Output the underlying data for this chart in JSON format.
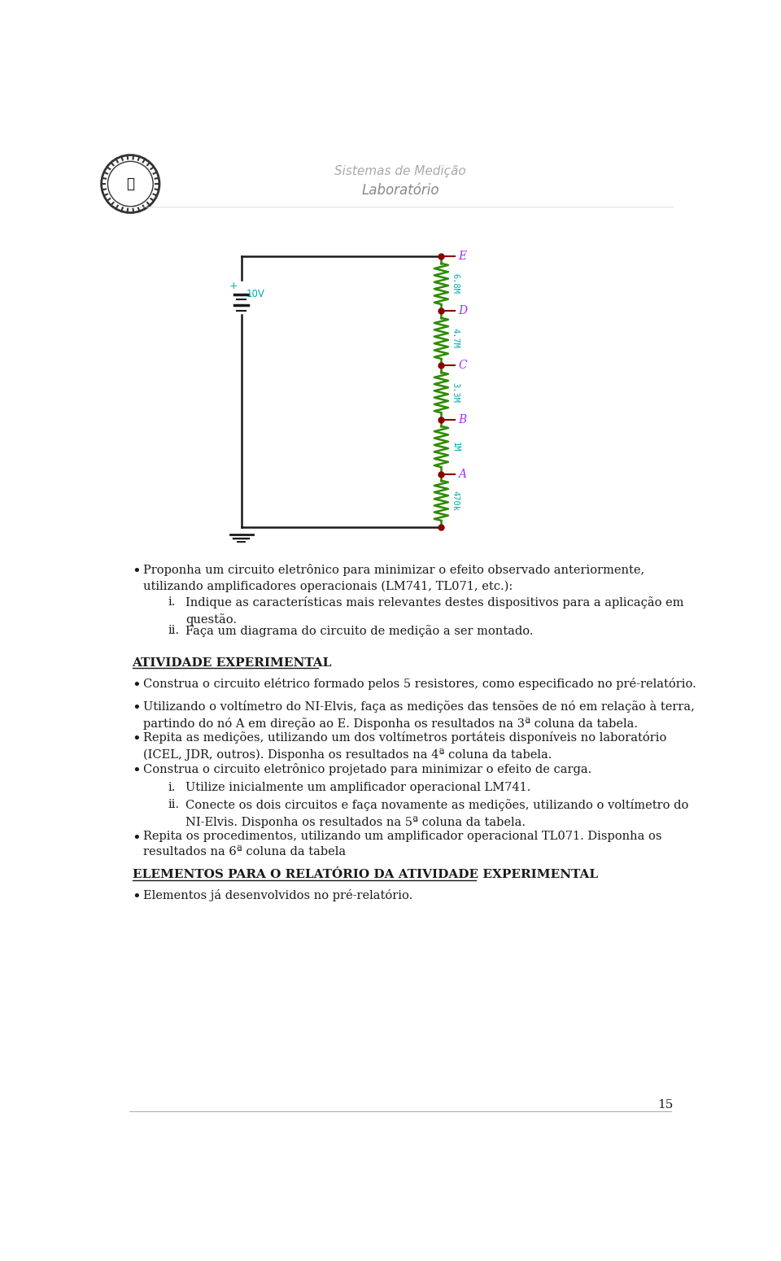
{
  "title1": "Sistemas de Medição",
  "title2": "Laboratório",
  "background_color": "#ffffff",
  "circuit_color": "#1a1a1a",
  "resistor_color": "#2e8b00",
  "node_color": "#8b0000",
  "label_color": "#9b30ff",
  "value_color": "#00aaaa",
  "battery_label": "10V",
  "resistors": [
    {
      "label": "6.8M",
      "node": "E"
    },
    {
      "label": "4.7M",
      "node": "D"
    },
    {
      "label": "3.3M",
      "node": "C"
    },
    {
      "label": "1M",
      "node": "B"
    },
    {
      "label": "470k",
      "node": "A"
    }
  ],
  "bullet1": "Proponha um circuito eletrônico para minimizar o efeito observado anteriormente,\nutilizando amplificadores operacionais (LM741, TL071, etc.):",
  "sub_i": "Indique as características mais relevantes destes dispositivos para a aplicação em\nquestão.",
  "sub_ii": "Faça um diagrama do circuito de medição a ser montado.",
  "section_title": "ATIVIDADE EXPERIMENTAL",
  "bullet2": "Construa o circuito elétrico formado pelos 5 resistores, como especificado no pré-relatório.",
  "bullet3": "Utilizando o voltímetro do NI-Elvis, faça as medições das tensões de nó em relação à terra,\npartindo do nó A em direção ao E. Disponha os resultados na 3ª coluna da tabela.",
  "bullet4": "Repita as medições, utilizando um dos voltímetros portáteis disponíveis no laboratório\n(ICEL, JDR, outros). Disponha os resultados na 4ª coluna da tabela.",
  "bullet5": "Construa o circuito eletrônico projetado para minimizar o efeito de carga.",
  "sub2_i": "Utilize inicialmente um amplificador operacional LM741.",
  "sub2_ii": "Conecte os dois circuitos e faça novamente as medições, utilizando o voltímetro do\nNI-Elvis. Disponha os resultados na 5ª coluna da tabela.",
  "bullet6": "Repita os procedimentos, utilizando um amplificador operacional TL071. Disponha os\nresultados na 6ª coluna da tabela",
  "section2_title": "ELEMENTOS PARA O RELATÓRIO DA ATIVIDADE EXPERIMENTAL",
  "bullet7": "Elementos já desenvolvidos no pré-relatório.",
  "page_number": "15"
}
